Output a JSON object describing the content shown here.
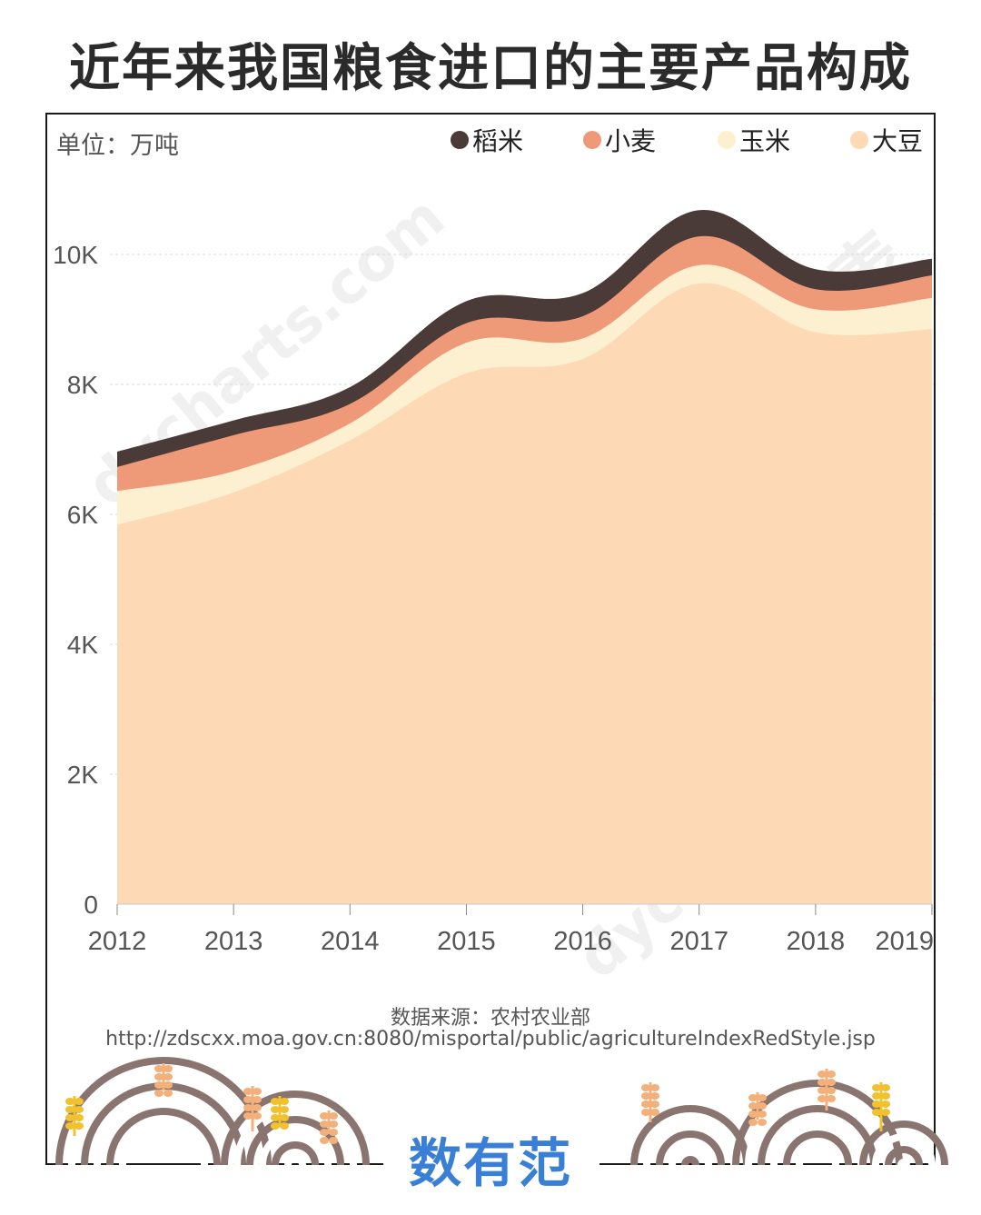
{
  "title": "近年来我国粮食进口的主要产品构成",
  "unit_label": "单位：万吨",
  "legend": [
    {
      "label": "稻米",
      "color": "#4a3a38"
    },
    {
      "label": "小麦",
      "color": "#ee9a78"
    },
    {
      "label": "玉米",
      "color": "#fdf0d0"
    },
    {
      "label": "大豆",
      "color": "#fdd9b5"
    }
  ],
  "source": {
    "line1": "数据来源：农村农业部",
    "line2": "http://zdscxx.moa.gov.cn:8080/misportal/public/agricultureIndexRedStyle.jsp"
  },
  "watermarks": [
    "镝数图表",
    "dycharts.com"
  ],
  "logo_text": "数有范",
  "chart_data": {
    "type": "area",
    "stacked": true,
    "title": "近年来我国粮食进口的主要产品构成",
    "unit": "万吨",
    "x": [
      "2012",
      "2013",
      "2014",
      "2015",
      "2016",
      "2017",
      "2018",
      "2019"
    ],
    "series": [
      {
        "name": "大豆",
        "color": "#fdd9b5",
        "values": [
          5838,
          6338,
          7140,
          8169,
          8391,
          9553,
          8803,
          8851
        ]
      },
      {
        "name": "玉米",
        "color": "#fdf0d0",
        "values": [
          521,
          327,
          260,
          473,
          317,
          283,
          352,
          479
        ]
      },
      {
        "name": "小麦",
        "color": "#ee9a78",
        "values": [
          370,
          554,
          300,
          301,
          341,
          442,
          310,
          349
        ]
      },
      {
        "name": "稻米",
        "color": "#4a3a38",
        "values": [
          236,
          227,
          258,
          338,
          356,
          403,
          308,
          255
        ]
      }
    ],
    "ylim": [
      0,
      10000
    ],
    "yticks": [
      0,
      2000,
      4000,
      6000,
      8000,
      10000
    ],
    "ytick_labels": [
      "0",
      "2K",
      "4K",
      "6K",
      "8K",
      "10K"
    ],
    "grid": true,
    "legend_position": "top-right"
  }
}
